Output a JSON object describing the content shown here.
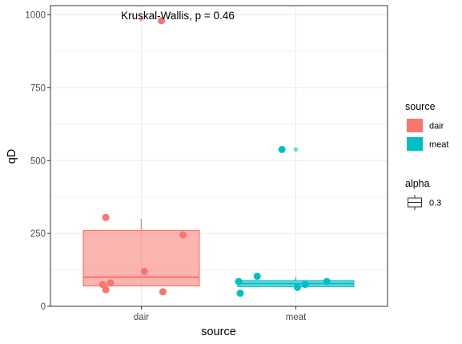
{
  "chart_data": {
    "type": "box",
    "annotation": "Kruskal-Wallis, p = 0.46",
    "xlabel": "source",
    "ylabel": "qD",
    "categories": [
      "dair",
      "meat"
    ],
    "ylim": [
      0,
      1030
    ],
    "yticks": [
      0,
      250,
      500,
      750,
      1000
    ],
    "ytick_labels": [
      "0",
      "250",
      "500",
      "750",
      "1000"
    ],
    "grid": true,
    "colors": {
      "dair": "#F8766D",
      "meat": "#00BFC4"
    },
    "series": [
      {
        "name": "dair",
        "box": {
          "lower_whisker": 70,
          "q1": 70,
          "median": 100,
          "q3": 260,
          "upper_whisker": 300
        },
        "outliers": [
          985
        ],
        "points": [
          {
            "x": -0.25,
            "y": 75
          },
          {
            "x": -0.23,
            "y": 305
          },
          {
            "x": -0.2,
            "y": 80
          },
          {
            "x": -0.23,
            "y": 57
          },
          {
            "x": 0.02,
            "y": 120
          },
          {
            "x": 0.14,
            "y": 50
          },
          {
            "x": 0.27,
            "y": 245
          },
          {
            "x": 0.13,
            "y": 980
          }
        ]
      },
      {
        "name": "meat",
        "box": {
          "lower_whisker": 65,
          "q1": 68,
          "median": 78,
          "q3": 88,
          "upper_whisker": 100
        },
        "outliers": [
          538
        ],
        "points": [
          {
            "x": -0.37,
            "y": 85
          },
          {
            "x": -0.36,
            "y": 45
          },
          {
            "x": -0.25,
            "y": 103
          },
          {
            "x": -0.09,
            "y": 538
          },
          {
            "x": 0.01,
            "y": 65
          },
          {
            "x": 0.06,
            "y": 75
          },
          {
            "x": 0.2,
            "y": 85
          }
        ]
      }
    ],
    "legend": {
      "placement": "right",
      "fill_title": "source",
      "fill_entries": [
        "dair",
        "meat"
      ],
      "alpha_title": "alpha",
      "alpha_entries": [
        "0.3"
      ]
    }
  }
}
